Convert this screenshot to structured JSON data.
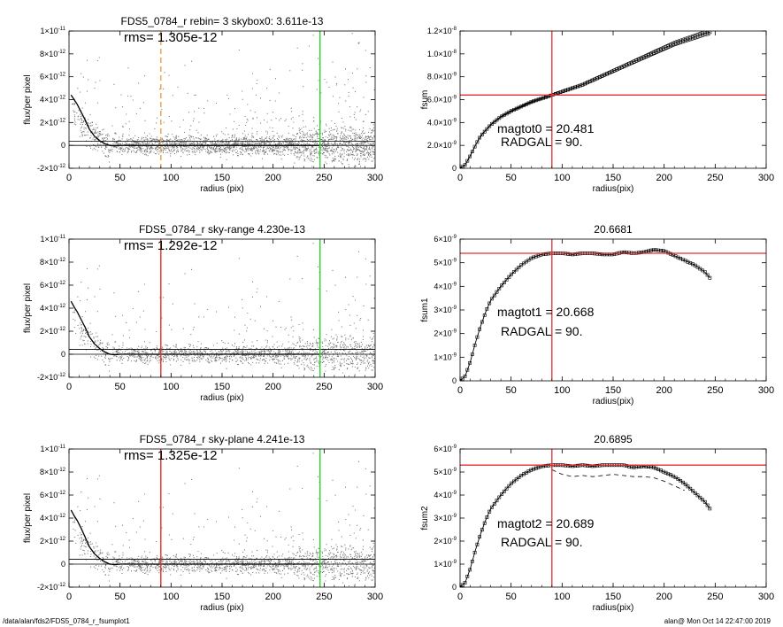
{
  "footer": {
    "path": "/data/alan/fds2/FDS5_0784_r_fsumplot1",
    "stamp": "alan@  Mon Oct 14 22:47:00 2019"
  },
  "colors": {
    "sky_marker": "#e8a040",
    "red": "#e03030",
    "green": "#30d030",
    "points": "#777777"
  },
  "chart_data": [
    {
      "type": "scatter",
      "title": "FDS5_0784_r rebin= 3    skybox0:  3.611e-13",
      "annotation": "rms= 1.305e-12",
      "xlabel": "radius (pix)",
      "ylabel": "flux/per pixel",
      "xlim": [
        0,
        300
      ],
      "ylim": [
        -2e-12,
        1e-11
      ],
      "xticks": [
        0,
        50,
        100,
        150,
        200,
        250,
        300
      ],
      "yticks": [
        {
          "value": 1e-11,
          "label": "1×10",
          "exp": "-11"
        },
        {
          "value": 8e-12,
          "label": "8×10",
          "exp": "-12"
        },
        {
          "value": 6e-12,
          "label": "6×10",
          "exp": "-12"
        },
        {
          "value": 4e-12,
          "label": "4×10",
          "exp": "-12"
        },
        {
          "value": 2e-12,
          "label": "2×10",
          "exp": "-12"
        },
        {
          "value": 0,
          "label": "0",
          "exp": ""
        },
        {
          "value": -2e-12,
          "label": "-2×10",
          "exp": "-12"
        }
      ],
      "vlines": [
        {
          "x": 90,
          "color": "#e8a040",
          "dashed": true
        },
        {
          "x": 246,
          "color": "#30d030",
          "dashed": false
        }
      ],
      "hlines": [
        3.6e-13,
        0
      ],
      "profile": {
        "x": [
          2,
          5,
          8,
          12,
          16,
          20,
          25,
          30,
          35,
          40,
          45,
          50,
          60,
          80,
          100,
          150,
          200,
          246
        ],
        "y": [
          4.4e-12,
          4e-12,
          3.6e-12,
          2.9e-12,
          2.2e-12,
          1.4e-12,
          8e-13,
          4e-13,
          1.5e-13,
          0,
          -5e-14,
          0,
          0,
          0,
          0,
          0,
          0,
          0
        ]
      },
      "grid": false
    },
    {
      "type": "line",
      "title": "",
      "annotations": [
        "magtot0 =  20.481",
        "RADGAL =     90."
      ],
      "xlabel": "radius(pix)",
      "ylabel": "fsum",
      "xlim": [
        0,
        300
      ],
      "ylim": [
        0,
        1.2e-08
      ],
      "xticks": [
        0,
        50,
        100,
        150,
        200,
        250,
        300
      ],
      "yticks": [
        {
          "value": 1.2e-08,
          "label": "1.2×10",
          "exp": "-8"
        },
        {
          "value": 1e-08,
          "label": "1.0×10",
          "exp": "-8"
        },
        {
          "value": 8e-09,
          "label": "8.0×10",
          "exp": "-9"
        },
        {
          "value": 6e-09,
          "label": "6.0×10",
          "exp": "-9"
        },
        {
          "value": 4e-09,
          "label": "4.0×10",
          "exp": "-9"
        },
        {
          "value": 2e-09,
          "label": "2.0×10",
          "exp": "-9"
        },
        {
          "value": 0,
          "label": "0",
          "exp": ""
        }
      ],
      "vline": 90,
      "hline": 6.4e-09,
      "series": [
        {
          "x": [
            0,
            5,
            10,
            15,
            20,
            25,
            30,
            40,
            50,
            60,
            70,
            80,
            90,
            100,
            110,
            120,
            130,
            140,
            150,
            160,
            170,
            180,
            190,
            200,
            210,
            220,
            230,
            240,
            245
          ],
          "y": [
            0,
            3e-10,
            1.1e-09,
            2e-09,
            2.8e-09,
            3.3e-09,
            3.8e-09,
            4.5e-09,
            5e-09,
            5.4e-09,
            5.8e-09,
            6.1e-09,
            6.4e-09,
            6.7e-09,
            7e-09,
            7.3e-09,
            7.7e-09,
            8.1e-09,
            8.5e-09,
            8.9e-09,
            9.3e-09,
            9.7e-09,
            1.01e-08,
            1.05e-08,
            1.09e-08,
            1.12e-08,
            1.15e-08,
            1.18e-08,
            1.19e-08
          ]
        }
      ],
      "envelope": 2.5e-10,
      "marker": "square",
      "grid": false
    },
    {
      "type": "scatter",
      "title": "FDS5_0784_r sky-range  4.230e-13",
      "annotation": "rms= 1.292e-12",
      "xlabel": "radius (pix)",
      "ylabel": "flux/per pixel",
      "xlim": [
        0,
        300
      ],
      "ylim": [
        -2e-12,
        1e-11
      ],
      "xticks": [
        0,
        50,
        100,
        150,
        200,
        250,
        300
      ],
      "yticks": [
        {
          "value": 1e-11,
          "label": "1×10",
          "exp": "-11"
        },
        {
          "value": 8e-12,
          "label": "8×10",
          "exp": "-12"
        },
        {
          "value": 6e-12,
          "label": "6×10",
          "exp": "-12"
        },
        {
          "value": 4e-12,
          "label": "4×10",
          "exp": "-12"
        },
        {
          "value": 2e-12,
          "label": "2×10",
          "exp": "-12"
        },
        {
          "value": 0,
          "label": "0",
          "exp": ""
        },
        {
          "value": -2e-12,
          "label": "-2×10",
          "exp": "-12"
        }
      ],
      "vlines": [
        {
          "x": 90,
          "color": "#e03030",
          "dashed": false
        },
        {
          "x": 246,
          "color": "#30d030",
          "dashed": false
        }
      ],
      "hlines": [
        4.2e-13,
        0
      ],
      "profile": {
        "x": [
          2,
          5,
          8,
          12,
          16,
          20,
          25,
          30,
          35,
          40,
          45,
          50,
          60,
          80,
          100,
          150,
          200,
          246
        ],
        "y": [
          4.6e-12,
          4.1e-12,
          3.7e-12,
          3e-12,
          2.3e-12,
          1.5e-12,
          9e-13,
          5e-13,
          2e-13,
          0,
          -5e-14,
          0,
          0,
          0,
          0,
          0,
          0,
          0
        ]
      },
      "grid": false
    },
    {
      "type": "line",
      "title": "20.6681",
      "annotations": [
        "magtot1 =  20.668",
        "RADGAL =     90."
      ],
      "xlabel": "radius(pix)",
      "ylabel": "fsum1",
      "xlim": [
        0,
        300
      ],
      "ylim": [
        0,
        6e-09
      ],
      "xticks": [
        0,
        50,
        100,
        150,
        200,
        250,
        300
      ],
      "yticks": [
        {
          "value": 6e-09,
          "label": "6×10",
          "exp": "-9"
        },
        {
          "value": 5e-09,
          "label": "5×10",
          "exp": "-9"
        },
        {
          "value": 4e-09,
          "label": "4×10",
          "exp": "-9"
        },
        {
          "value": 3e-09,
          "label": "3×10",
          "exp": "-9"
        },
        {
          "value": 2e-09,
          "label": "2×10",
          "exp": "-9"
        },
        {
          "value": 1e-09,
          "label": "1×10",
          "exp": "-9"
        },
        {
          "value": 0,
          "label": "0",
          "exp": ""
        }
      ],
      "vline": 90,
      "hline": 5.4e-09,
      "series": [
        {
          "x": [
            0,
            5,
            10,
            15,
            20,
            25,
            30,
            40,
            50,
            60,
            70,
            80,
            90,
            100,
            110,
            120,
            130,
            140,
            150,
            160,
            170,
            180,
            190,
            200,
            210,
            220,
            230,
            240,
            245
          ],
          "y": [
            0,
            2e-10,
            8e-10,
            1.6e-09,
            2.3e-09,
            2.9e-09,
            3.4e-09,
            4e-09,
            4.5e-09,
            4.9e-09,
            5.2e-09,
            5.35e-09,
            5.4e-09,
            5.4e-09,
            5.35e-09,
            5.4e-09,
            5.4e-09,
            5.35e-09,
            5.35e-09,
            5.45e-09,
            5.4e-09,
            5.45e-09,
            5.55e-09,
            5.5e-09,
            5.3e-09,
            5.1e-09,
            4.9e-09,
            4.6e-09,
            4.35e-09
          ]
        }
      ],
      "marker": "square",
      "grid": false
    },
    {
      "type": "scatter",
      "title": "FDS5_0784_r sky-plane  4.241e-13",
      "annotation": "rms= 1.325e-12",
      "xlabel": "radius (pix)",
      "ylabel": "flux/per pixel",
      "xlim": [
        0,
        300
      ],
      "ylim": [
        -2e-12,
        1e-11
      ],
      "xticks": [
        0,
        50,
        100,
        150,
        200,
        250,
        300
      ],
      "yticks": [
        {
          "value": 1e-11,
          "label": "1×10",
          "exp": "-11"
        },
        {
          "value": 8e-12,
          "label": "8×10",
          "exp": "-12"
        },
        {
          "value": 6e-12,
          "label": "6×10",
          "exp": "-12"
        },
        {
          "value": 4e-12,
          "label": "4×10",
          "exp": "-12"
        },
        {
          "value": 2e-12,
          "label": "2×10",
          "exp": "-12"
        },
        {
          "value": 0,
          "label": "0",
          "exp": ""
        },
        {
          "value": -2e-12,
          "label": "-2×10",
          "exp": "-12"
        }
      ],
      "vlines": [
        {
          "x": 90,
          "color": "#e03030",
          "dashed": false
        },
        {
          "x": 246,
          "color": "#30d030",
          "dashed": false
        }
      ],
      "hlines": [
        4.2e-13,
        0
      ],
      "profile": {
        "x": [
          2,
          5,
          8,
          12,
          16,
          20,
          25,
          30,
          35,
          40,
          45,
          50,
          60,
          80,
          100,
          150,
          200,
          246
        ],
        "y": [
          4.7e-12,
          4.2e-12,
          3.8e-12,
          3.1e-12,
          2.3e-12,
          1.5e-12,
          9e-13,
          5e-13,
          2e-13,
          0,
          -5e-14,
          0,
          0,
          0,
          0,
          0,
          0,
          0
        ]
      },
      "grid": false
    },
    {
      "type": "line",
      "title": "20.6895",
      "annotations": [
        "magtot2 =  20.689",
        "RADGAL =     90."
      ],
      "xlabel": "radius(pix)",
      "ylabel": "fsum2",
      "xlim": [
        0,
        300
      ],
      "ylim": [
        0,
        6e-09
      ],
      "xticks": [
        0,
        50,
        100,
        150,
        200,
        250,
        300
      ],
      "yticks": [
        {
          "value": 6e-09,
          "label": "6×10",
          "exp": "-9"
        },
        {
          "value": 5e-09,
          "label": "5×10",
          "exp": "-9"
        },
        {
          "value": 4e-09,
          "label": "4×10",
          "exp": "-9"
        },
        {
          "value": 3e-09,
          "label": "3×10",
          "exp": "-9"
        },
        {
          "value": 2e-09,
          "label": "2×10",
          "exp": "-9"
        },
        {
          "value": 1e-09,
          "label": "1×10",
          "exp": "-9"
        },
        {
          "value": 0,
          "label": "0",
          "exp": ""
        }
      ],
      "vline": 90,
      "hline": 5.3e-09,
      "series": [
        {
          "x": [
            0,
            5,
            10,
            15,
            20,
            25,
            30,
            40,
            50,
            60,
            70,
            80,
            90,
            100,
            110,
            120,
            130,
            140,
            150,
            160,
            170,
            180,
            190,
            200,
            210,
            220,
            230,
            240,
            245
          ],
          "y": [
            0,
            2e-10,
            8e-10,
            1.6e-09,
            2.3e-09,
            2.9e-09,
            3.4e-09,
            4e-09,
            4.5e-09,
            4.85e-09,
            5.1e-09,
            5.25e-09,
            5.3e-09,
            5.3e-09,
            5.25e-09,
            5.3e-09,
            5.25e-09,
            5.3e-09,
            5.3e-09,
            5.3e-09,
            5.2e-09,
            5.25e-09,
            5.2e-09,
            5e-09,
            4.8e-09,
            4.5e-09,
            4.1e-09,
            3.7e-09,
            3.4e-09
          ]
        },
        {
          "x": [
            90,
            100,
            110,
            120,
            130,
            140,
            150,
            160,
            170,
            180,
            190,
            200,
            210,
            220
          ],
          "y": [
            5.1e-09,
            4.9e-09,
            4.8e-09,
            4.85e-09,
            4.8e-09,
            4.85e-09,
            4.9e-09,
            4.85e-09,
            4.8e-09,
            4.8e-09,
            4.75e-09,
            4.6e-09,
            4.4e-09,
            4.2e-09
          ],
          "dashed": true
        }
      ],
      "marker": "square",
      "grid": false
    }
  ]
}
